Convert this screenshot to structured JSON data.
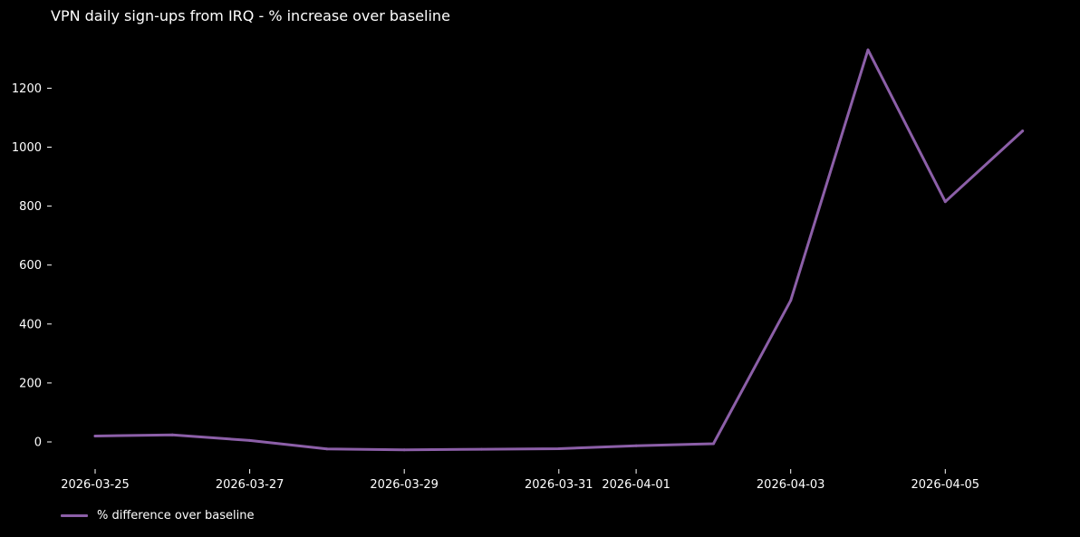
{
  "chart_data": {
    "type": "line",
    "title": "VPN daily sign-ups from IRQ - % increase over baseline",
    "xlabel": "",
    "ylabel": "",
    "x": [
      "2026-03-25",
      "2026-03-26",
      "2026-03-27",
      "2026-03-28",
      "2026-03-29",
      "2026-03-30",
      "2026-03-31",
      "2026-04-01",
      "2026-04-02",
      "2026-04-03",
      "2026-04-04",
      "2026-04-05",
      "2026-04-06"
    ],
    "x_tick_labels": [
      "2026-03-25",
      "2026-03-27",
      "2026-03-29",
      "2026-03-31",
      "2026-04-01",
      "2026-04-03",
      "2026-04-05"
    ],
    "y_tick_labels": [
      0,
      200,
      400,
      600,
      800,
      1000,
      1200
    ],
    "ylim": [
      -85,
      1385
    ],
    "grid": false,
    "legend_position": "bottom-left",
    "series": [
      {
        "name": "% difference over baseline",
        "color": "#8c5fa8",
        "values": [
          20,
          24,
          5,
          -24,
          -27,
          -25,
          -23,
          -13,
          -6,
          480,
          1330,
          815,
          1055
        ]
      }
    ]
  }
}
